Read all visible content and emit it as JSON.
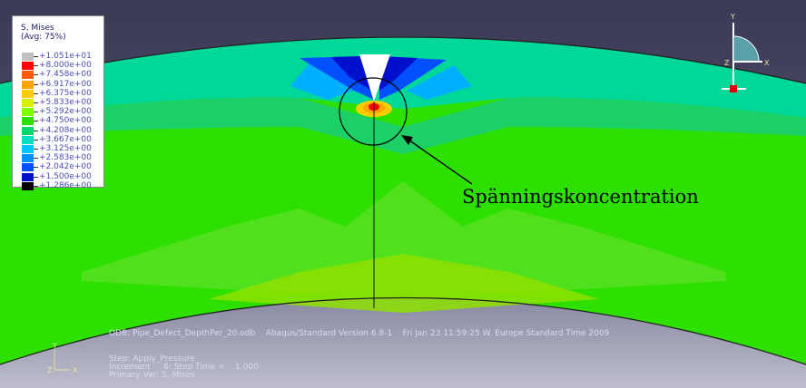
{
  "legend": {
    "title_line1": "S, Mises",
    "title_line2": "(Avg: 75%)",
    "values": [
      "+1.051e+01",
      "+8.000e+00",
      "+7.458e+00",
      "+6.917e+00",
      "+6.375e+00",
      "+5.833e+00",
      "+5.292e+00",
      "+4.750e+00",
      "+4.208e+00",
      "+3.667e+00",
      "+3.125e+00",
      "+2.583e+00",
      "+2.042e+00",
      "+1.500e+00",
      "+1.286e+00"
    ],
    "colors": [
      "#c0c0c0",
      "#ff0000",
      "#ff5a00",
      "#ffa500",
      "#ffcc00",
      "#d8f000",
      "#80ff00",
      "#2de000",
      "#00d86a",
      "#00e0c0",
      "#00c8ff",
      "#0090ff",
      "#0050ff",
      "#0010cc",
      "#000000"
    ]
  },
  "annotation": {
    "text": "Spänningskoncentration"
  },
  "info": {
    "odb_line": "ODB: Pipe_Defect_DepthPer_20.odb    Abaqus/Standard Version 6.8-1    Fri Jan 23 11:59:25 W. Europe Standard Time 2009",
    "step_line": "Step: Apply_Pressure",
    "increment_line": "Increment     6: Step Time =    1.000",
    "primary_var_line": "Primary Var: S, Mises"
  },
  "triad": {
    "y_label": "Y",
    "x_label": "X",
    "z_label": "Z"
  },
  "colors": {
    "background_top": "#3b3a56",
    "background_bottom": "#bdbdce",
    "base_stress": "#2de000",
    "max_stress": "#ff0000"
  },
  "icons": {
    "triad": "view-triad-icon",
    "small_triad": "coordinate-axes-icon"
  }
}
